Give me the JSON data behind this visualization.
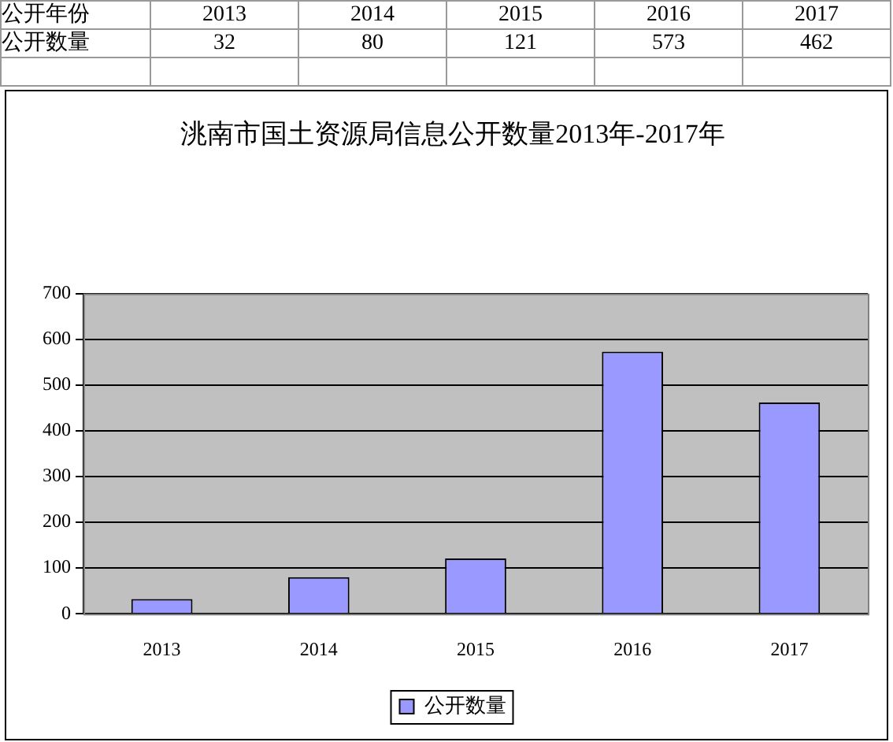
{
  "chart_data": {
    "type": "bar",
    "title": "洮南市国土资源局信息公开数量2013年-2017年",
    "annotations": [
      "公开年份"
    ],
    "categories": [
      "2013",
      "2014",
      "2015",
      "2016",
      "2017"
    ],
    "series": [
      {
        "name": "公开数量",
        "color": "#9999ff",
        "values": [
          32,
          80,
          121,
          573,
          462
        ]
      }
    ],
    "ylim": [
      0,
      700
    ],
    "yticks": [
      0,
      100,
      200,
      300,
      400,
      500,
      600,
      700
    ],
    "grid": "y",
    "legend": "bottom",
    "data_labels": true
  }
}
